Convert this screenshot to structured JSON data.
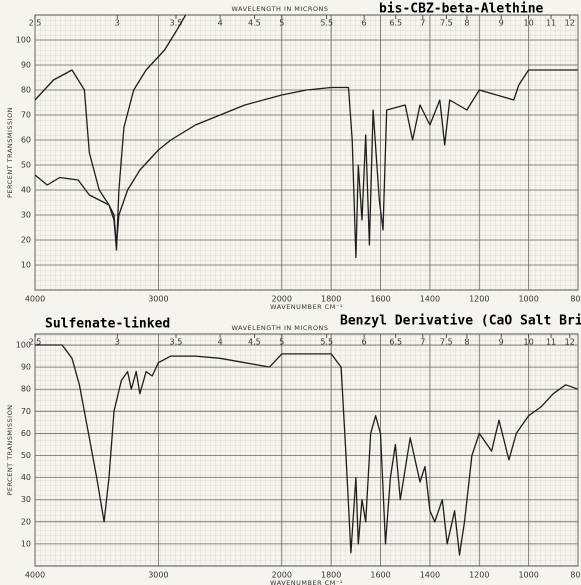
{
  "chart_data": [
    {
      "type": "line",
      "title": "bis-CBZ-beta-Alethine",
      "xlabel": "WAVENUMBER CM⁻¹",
      "x2label": "WAVELENGTH IN MICRONS",
      "ylabel": "PERCENT TRANSMISSION",
      "xlim": [
        4000,
        800
      ],
      "xticks": [
        4000,
        3000,
        2000,
        1800,
        1600,
        1400,
        1200,
        1000,
        800
      ],
      "x2ticks": [
        2.5,
        3,
        3.5,
        4,
        4.5,
        5,
        5.5,
        6,
        6.5,
        7,
        7.5,
        8,
        9,
        10,
        11,
        12
      ],
      "ylim": [
        0,
        110
      ],
      "yticks": [
        10,
        20,
        30,
        40,
        50,
        60,
        70,
        80,
        90,
        100
      ],
      "grid": true,
      "series": [
        {
          "color": "#1e1e1e",
          "x": [
            4000,
            3900,
            3800,
            3650,
            3560,
            3480,
            3400,
            3360,
            3340,
            3320,
            3250,
            3150,
            3000,
            2900,
            2700,
            2500,
            2300,
            2000,
            1900,
            1800,
            1730,
            1715,
            1700,
            1690,
            1675,
            1660,
            1645,
            1630,
            1605,
            1590,
            1575,
            1500,
            1470,
            1440,
            1400,
            1360,
            1340,
            1320,
            1250,
            1200,
            1130,
            1060,
            1040,
            1000,
            800
          ],
          "values": [
            46,
            42,
            45,
            44,
            38,
            36,
            34,
            30,
            18,
            30,
            40,
            48,
            56,
            60,
            66,
            70,
            74,
            78,
            80,
            81,
            81,
            60,
            13,
            50,
            28,
            62,
            18,
            72,
            36,
            24,
            72,
            74,
            60,
            74,
            66,
            76,
            58,
            76,
            72,
            80,
            78,
            76,
            82,
            88,
            88
          ]
        },
        {
          "color": "#1e1e1e",
          "x": [
            4000,
            3850,
            3700,
            3600,
            3560,
            3480,
            3400,
            3360,
            3340,
            3320,
            3280,
            3200,
            3100,
            2950,
            2850,
            2780
          ],
          "values": [
            76,
            84,
            88,
            80,
            55,
            40,
            34,
            28,
            16,
            40,
            65,
            80,
            88,
            96,
            104,
            110
          ]
        }
      ]
    },
    {
      "type": "line",
      "title": "Benzyl Derivative (CaO Salt Bridge)",
      "annotation": "Sulfenate-linked",
      "xlabel": "WAVENUMBER CM⁻¹",
      "x2label": "WAVELENGTH IN MICRONS",
      "ylabel": "PERCENT TRANSMISSION",
      "xlim": [
        4000,
        800
      ],
      "xticks": [
        4000,
        3000,
        2000,
        1800,
        1600,
        1400,
        1200,
        1000,
        800
      ],
      "x2ticks": [
        2.5,
        3,
        3.5,
        4,
        4.5,
        5,
        5.5,
        6,
        6.5,
        7,
        7.5,
        8,
        9,
        10,
        11,
        12
      ],
      "ylim": [
        0,
        105
      ],
      "yticks": [
        10,
        20,
        30,
        40,
        50,
        60,
        70,
        80,
        90,
        100
      ],
      "grid": true,
      "series": [
        {
          "color": "#1e1e1e",
          "x": [
            4000,
            3900,
            3780,
            3700,
            3640,
            3560,
            3500,
            3440,
            3400,
            3360,
            3300,
            3250,
            3220,
            3180,
            3150,
            3100,
            3050,
            3000,
            2900,
            2700,
            2500,
            2300,
            2100,
            2000,
            1900,
            1800,
            1760,
            1740,
            1720,
            1700,
            1690,
            1675,
            1660,
            1640,
            1620,
            1600,
            1580,
            1560,
            1540,
            1520,
            1480,
            1440,
            1420,
            1400,
            1380,
            1350,
            1330,
            1300,
            1280,
            1260,
            1230,
            1200,
            1150,
            1120,
            1080,
            1050,
            1000,
            950,
            900,
            850,
            800
          ],
          "values": [
            100,
            100,
            100,
            94,
            82,
            58,
            40,
            20,
            40,
            70,
            84,
            88,
            80,
            88,
            78,
            88,
            86,
            92,
            95,
            95,
            94,
            92,
            90,
            96,
            96,
            96,
            90,
            50,
            6,
            40,
            10,
            30,
            20,
            60,
            68,
            60,
            10,
            40,
            55,
            30,
            58,
            38,
            45,
            25,
            20,
            30,
            10,
            25,
            5,
            20,
            50,
            60,
            52,
            66,
            48,
            60,
            68,
            72,
            78,
            82,
            80
          ]
        }
      ]
    }
  ]
}
